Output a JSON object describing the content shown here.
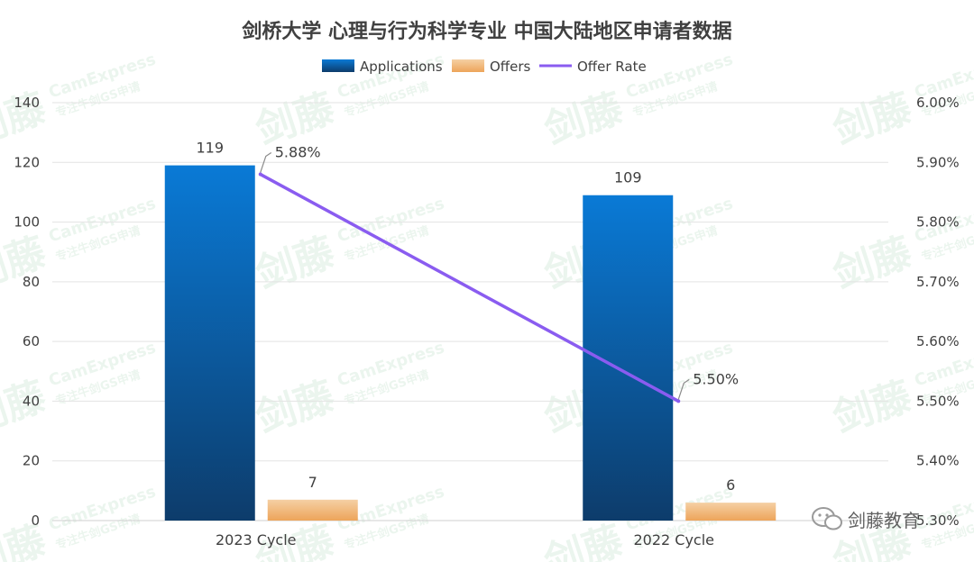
{
  "chart_data": {
    "type": "bar",
    "title": "剑桥大学 心理与行为科学专业 中国大陆地区申请者数据",
    "categories": [
      "2023 Cycle",
      "2022 Cycle"
    ],
    "series": [
      {
        "name": "Applications",
        "kind": "bar",
        "axis": "left",
        "values": [
          119,
          109
        ],
        "labels": [
          "119",
          "109"
        ]
      },
      {
        "name": "Offers",
        "kind": "bar",
        "axis": "left",
        "values": [
          7,
          6
        ],
        "labels": [
          "7",
          "6"
        ]
      },
      {
        "name": "Offer Rate",
        "kind": "line",
        "axis": "right",
        "values": [
          5.88,
          5.5
        ],
        "labels": [
          "5.88%",
          "5.50%"
        ]
      }
    ],
    "y_left": {
      "min": 0,
      "max": 140,
      "step": 20,
      "ticks": [
        "0",
        "20",
        "40",
        "60",
        "80",
        "100",
        "120",
        "140"
      ]
    },
    "y_right": {
      "min": 5.3,
      "max": 6.0,
      "step": 0.1,
      "ticks": [
        "5.30%",
        "5.40%",
        "5.50%",
        "5.60%",
        "5.70%",
        "5.80%",
        "5.90%",
        "6.00%"
      ]
    },
    "grid": true,
    "legend_position": "top-center",
    "colors": {
      "applications_top": "#0a7ad6",
      "applications_bottom": "#0d3c6b",
      "offers_top": "#f5d0a4",
      "offers_bottom": "#eda45a",
      "offer_rate": "#8a5cf0",
      "grid": "#e3e3e3"
    }
  },
  "watermark": {
    "brand_cn": "剑藤",
    "brand_en": "CamExpress",
    "tagline": "专注牛剑GS申请",
    "account": "剑藤教育"
  }
}
